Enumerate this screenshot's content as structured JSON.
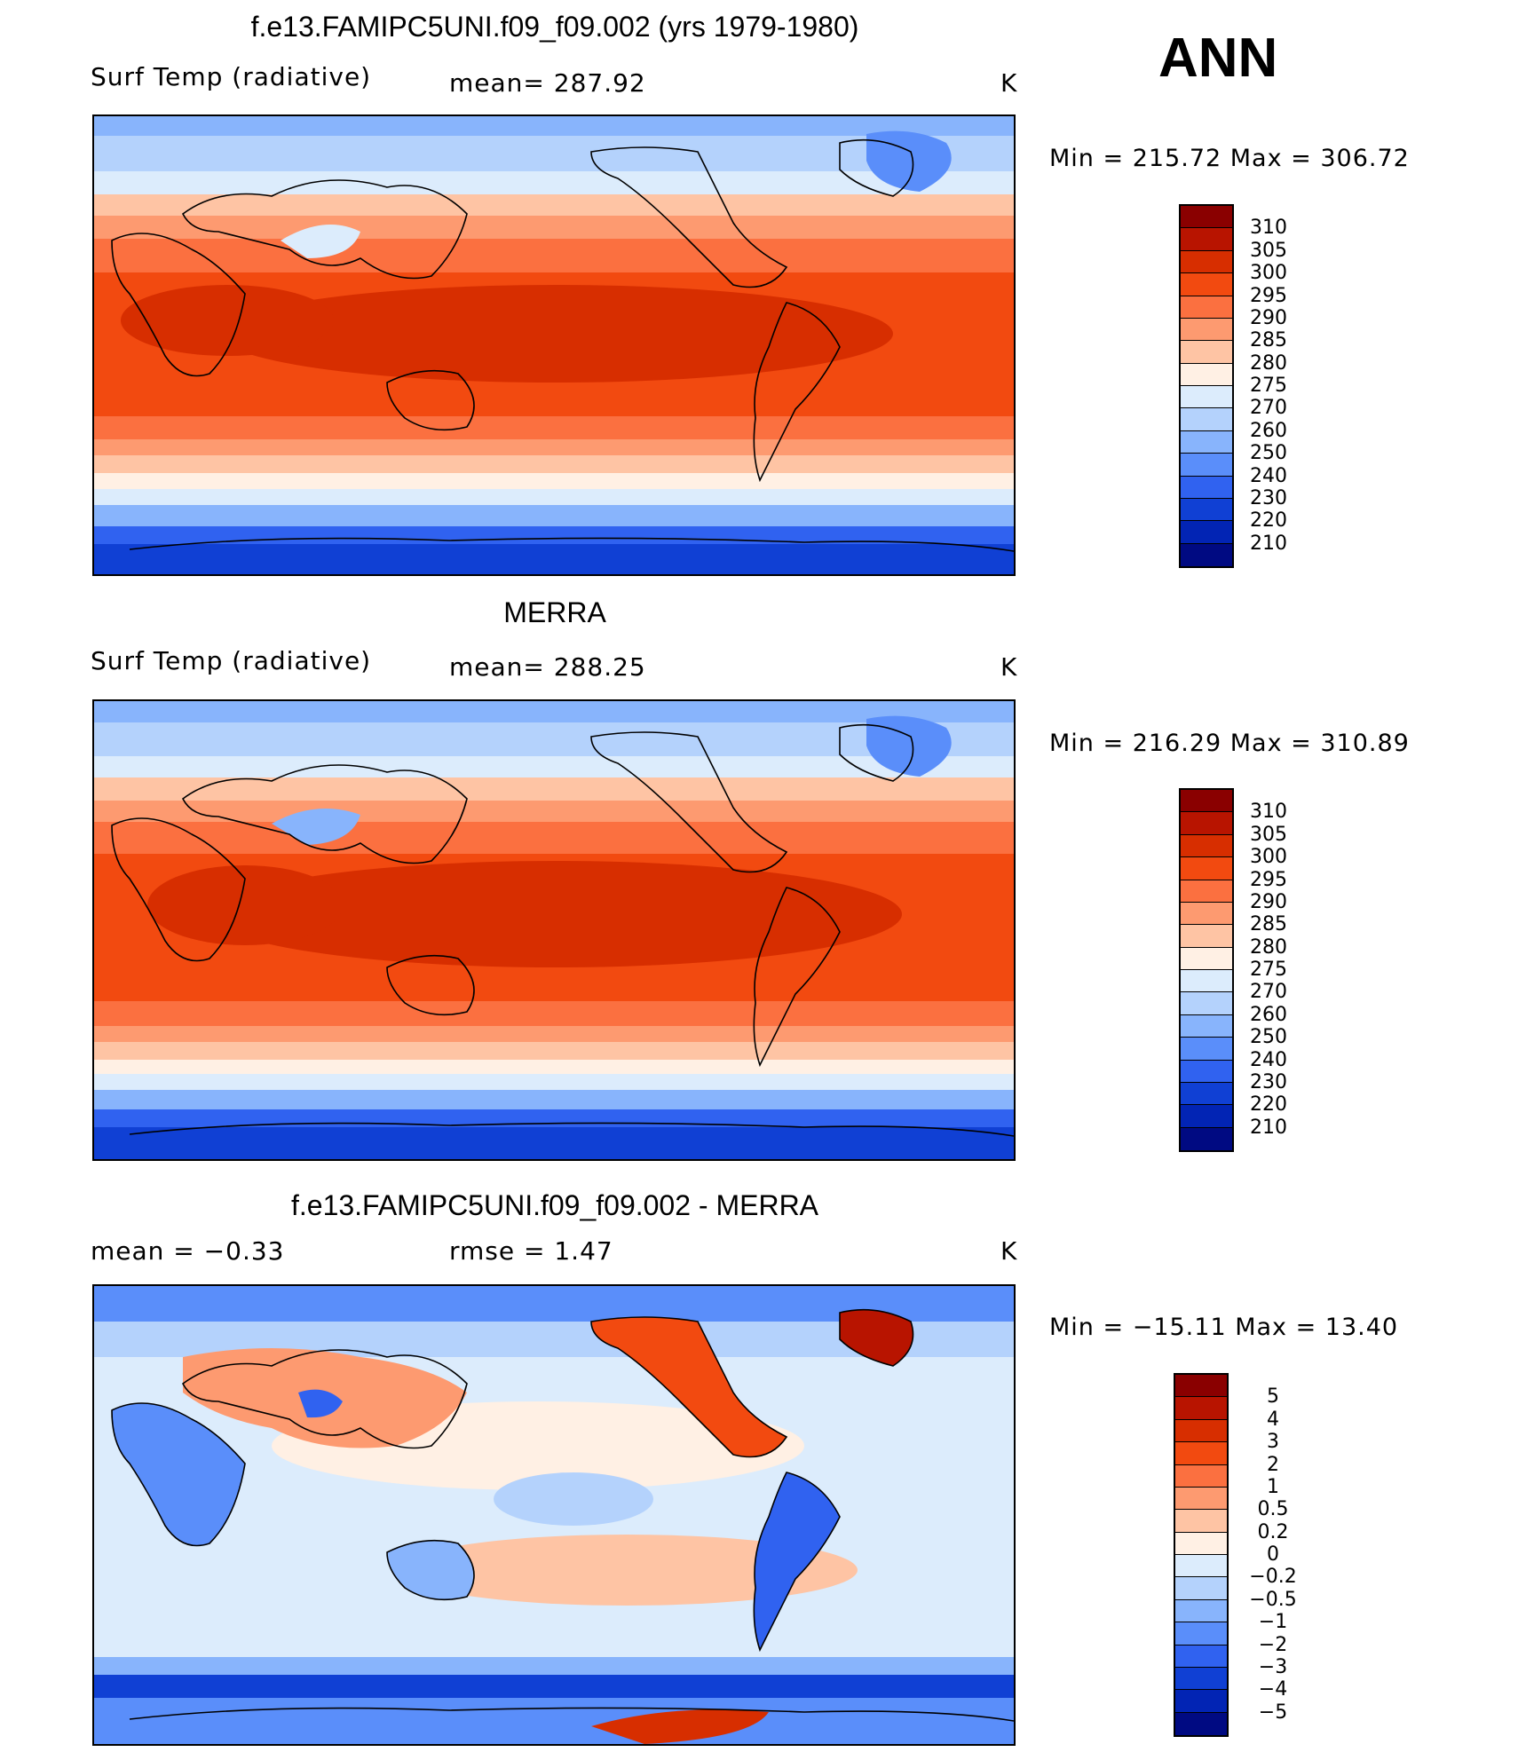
{
  "season": "ANN",
  "panels": [
    {
      "id": "model",
      "title": "f.e13.FAMIPC5UNI.f09_f09.002 (yrs 1979-1980)",
      "left_label": "Surf Temp (radiative)",
      "center_label": "mean=  287.92",
      "units": "K",
      "minmax": "Min  =  215.72  Max  =  306.72"
    },
    {
      "id": "obs",
      "title": "MERRA",
      "left_label": "Surf Temp (radiative)",
      "center_label": "mean=  288.25",
      "units": "K",
      "minmax": "Min  =  216.29  Max  =  310.89"
    },
    {
      "id": "diff",
      "title": "f.e13.FAMIPC5UNI.f09_f09.002 - MERRA",
      "left_label": "mean  =     −0.33",
      "center_label": "rmse  =      1.47",
      "units": "K",
      "minmax": "Min  =  −15.11  Max  =    13.40"
    }
  ],
  "colorbars": {
    "abs": {
      "labels": [
        "310",
        "305",
        "300",
        "295",
        "290",
        "285",
        "280",
        "275",
        "270",
        "260",
        "250",
        "240",
        "230",
        "220",
        "210"
      ],
      "colors": [
        "#8a0000",
        "#b81400",
        "#d72e00",
        "#f24a10",
        "#fb7040",
        "#fd9a70",
        "#fec4a4",
        "#fff0e4",
        "#dcecfc",
        "#b4d2fc",
        "#88b4fc",
        "#5a8efa",
        "#3062f0",
        "#1040d4",
        "#0224b4",
        "#000a82"
      ]
    },
    "diff": {
      "labels": [
        "5",
        "4",
        "3",
        "2",
        "1",
        "0.5",
        "0.2",
        "0",
        "−0.2",
        "−0.5",
        "−1",
        "−2",
        "−3",
        "−4",
        "−5"
      ],
      "colors": [
        "#8a0000",
        "#b81400",
        "#d72e00",
        "#f24a10",
        "#fb7040",
        "#fd9a70",
        "#fec4a4",
        "#fff0e4",
        "#dcecfc",
        "#b4d2fc",
        "#88b4fc",
        "#5a8efa",
        "#3062f0",
        "#1040d4",
        "#0224b4",
        "#000a82"
      ]
    }
  }
}
